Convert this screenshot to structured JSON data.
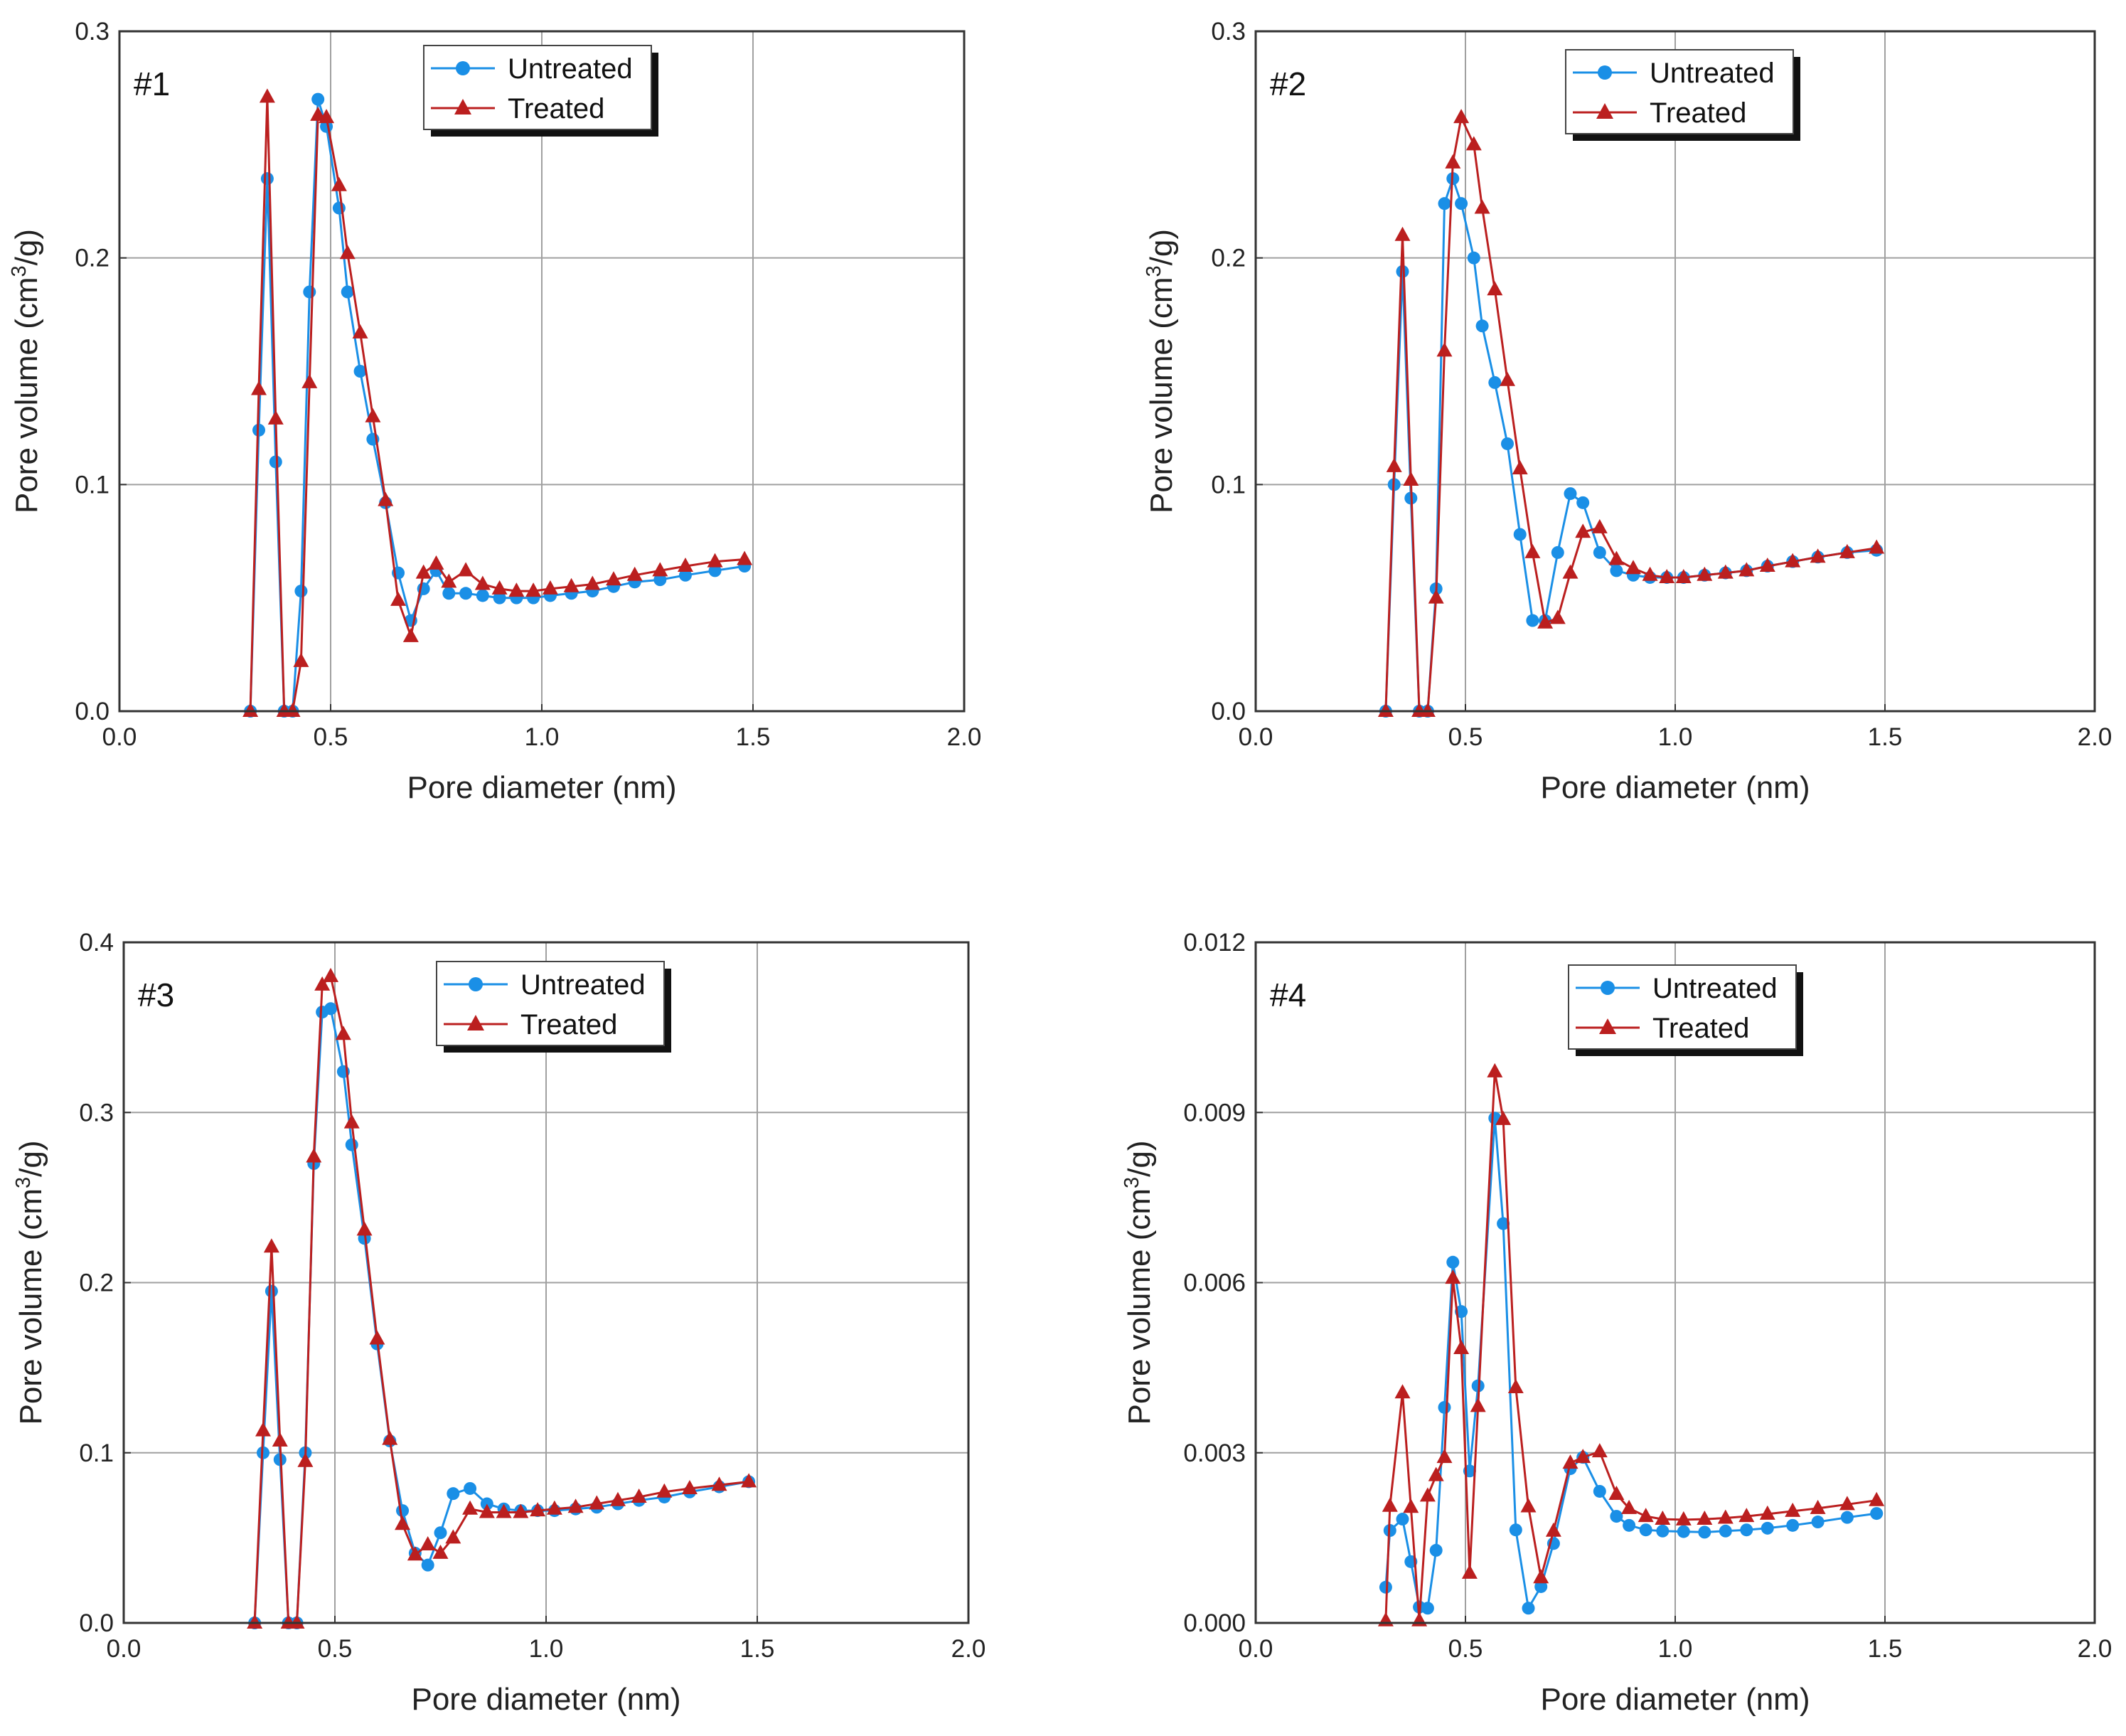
{
  "colors": {
    "untreated": "#1a8fe6",
    "treated": "#bb1f1f"
  },
  "chart_data": [
    {
      "type": "line",
      "panel_label": "#1",
      "xlabel": "Pore diameter (nm)",
      "ylabel_main": "Pore volume (cm",
      "ylabel_sup": "3",
      "ylabel_end": "/g)",
      "xlim": [
        0,
        2.0
      ],
      "ylim": [
        0,
        0.3
      ],
      "xticks": [
        0,
        0.5,
        1.0,
        1.5,
        2.0
      ],
      "xtick_labels": [
        "0.0",
        "0.5",
        "1.0",
        "1.5",
        "2.0"
      ],
      "yticks": [
        0,
        0.1,
        0.2,
        0.3
      ],
      "ytick_labels": [
        "0.0",
        "0.1",
        "0.2",
        "0.3"
      ],
      "grid": true,
      "legend": "top-center",
      "series": [
        {
          "name": "Untreated",
          "marker": "circle",
          "x": [
            0.31,
            0.33,
            0.35,
            0.37,
            0.39,
            0.41,
            0.43,
            0.45,
            0.47,
            0.49,
            0.52,
            0.54,
            0.57,
            0.6,
            0.63,
            0.66,
            0.69,
            0.72,
            0.75,
            0.78,
            0.82,
            0.86,
            0.9,
            0.94,
            0.98,
            1.02,
            1.07,
            1.12,
            1.17,
            1.22,
            1.28,
            1.34,
            1.41,
            1.48
          ],
          "y": [
            0.0,
            0.124,
            0.235,
            0.11,
            0.0,
            0.0,
            0.053,
            0.185,
            0.27,
            0.258,
            0.222,
            0.185,
            0.15,
            0.12,
            0.092,
            0.061,
            0.04,
            0.054,
            0.062,
            0.052,
            0.052,
            0.051,
            0.05,
            0.05,
            0.05,
            0.051,
            0.052,
            0.053,
            0.055,
            0.057,
            0.058,
            0.06,
            0.062,
            0.064
          ]
        },
        {
          "name": "Treated",
          "marker": "triangle",
          "x": [
            0.31,
            0.33,
            0.35,
            0.37,
            0.39,
            0.41,
            0.43,
            0.45,
            0.47,
            0.49,
            0.52,
            0.54,
            0.57,
            0.6,
            0.63,
            0.66,
            0.69,
            0.72,
            0.75,
            0.78,
            0.82,
            0.86,
            0.9,
            0.94,
            0.98,
            1.02,
            1.07,
            1.12,
            1.17,
            1.22,
            1.28,
            1.34,
            1.41,
            1.48
          ],
          "y": [
            0.0,
            0.142,
            0.271,
            0.129,
            0.0,
            0.0,
            0.022,
            0.145,
            0.263,
            0.262,
            0.232,
            0.202,
            0.167,
            0.13,
            0.093,
            0.049,
            0.033,
            0.061,
            0.065,
            0.057,
            0.062,
            0.056,
            0.054,
            0.053,
            0.053,
            0.054,
            0.055,
            0.056,
            0.058,
            0.06,
            0.062,
            0.064,
            0.066,
            0.067
          ]
        }
      ]
    },
    {
      "type": "line",
      "panel_label": "#2",
      "xlabel": "Pore diameter (nm)",
      "ylabel_main": "Pore volume (cm",
      "ylabel_sup": "3",
      "ylabel_end": "/g)",
      "xlim": [
        0,
        2.0
      ],
      "ylim": [
        0,
        0.3
      ],
      "xticks": [
        0,
        0.5,
        1.0,
        1.5,
        2.0
      ],
      "xtick_labels": [
        "0.0",
        "0.5",
        "1.0",
        "1.5",
        "2.0"
      ],
      "yticks": [
        0,
        0.1,
        0.2,
        0.3
      ],
      "ytick_labels": [
        "0.0",
        "0.1",
        "0.2",
        "0.3"
      ],
      "grid": true,
      "legend": "top-right",
      "series": [
        {
          "name": "Untreated",
          "marker": "circle",
          "x": [
            0.31,
            0.33,
            0.35,
            0.37,
            0.39,
            0.41,
            0.43,
            0.45,
            0.47,
            0.49,
            0.52,
            0.54,
            0.57,
            0.6,
            0.63,
            0.66,
            0.69,
            0.72,
            0.75,
            0.78,
            0.82,
            0.86,
            0.9,
            0.94,
            0.98,
            1.02,
            1.07,
            1.12,
            1.17,
            1.22,
            1.28,
            1.34,
            1.41,
            1.48
          ],
          "y": [
            0.0,
            0.1,
            0.194,
            0.094,
            0.0,
            0.0,
            0.054,
            0.224,
            0.235,
            0.224,
            0.2,
            0.17,
            0.145,
            0.118,
            0.078,
            0.04,
            0.04,
            0.07,
            0.096,
            0.092,
            0.07,
            0.062,
            0.06,
            0.059,
            0.059,
            0.059,
            0.06,
            0.061,
            0.062,
            0.064,
            0.066,
            0.068,
            0.07,
            0.071
          ]
        },
        {
          "name": "Treated",
          "marker": "triangle",
          "x": [
            0.31,
            0.33,
            0.35,
            0.37,
            0.39,
            0.41,
            0.43,
            0.45,
            0.47,
            0.49,
            0.52,
            0.54,
            0.57,
            0.6,
            0.63,
            0.66,
            0.69,
            0.72,
            0.75,
            0.78,
            0.82,
            0.86,
            0.9,
            0.94,
            0.98,
            1.02,
            1.07,
            1.12,
            1.17,
            1.22,
            1.28,
            1.34,
            1.41,
            1.48
          ],
          "y": [
            0.0,
            0.108,
            0.21,
            0.102,
            0.0,
            0.0,
            0.05,
            0.159,
            0.242,
            0.262,
            0.25,
            0.222,
            0.186,
            0.146,
            0.107,
            0.07,
            0.039,
            0.041,
            0.061,
            0.079,
            0.081,
            0.067,
            0.063,
            0.06,
            0.059,
            0.059,
            0.06,
            0.061,
            0.062,
            0.064,
            0.066,
            0.068,
            0.07,
            0.072
          ]
        }
      ]
    },
    {
      "type": "line",
      "panel_label": "#3",
      "xlabel": "Pore diameter (nm)",
      "ylabel_main": "Pore volume (cm",
      "ylabel_sup": "3",
      "ylabel_end": "/g)",
      "xlim": [
        0,
        2.0
      ],
      "ylim": [
        0,
        0.4
      ],
      "xticks": [
        0,
        0.5,
        1.0,
        1.5,
        2.0
      ],
      "xtick_labels": [
        "0.0",
        "0.5",
        "1.0",
        "1.5",
        "2.0"
      ],
      "yticks": [
        0,
        0.1,
        0.2,
        0.3,
        0.4
      ],
      "ytick_labels": [
        "0.0",
        "0.1",
        "0.2",
        "0.3",
        "0.4"
      ],
      "grid": true,
      "legend": "top-center",
      "series": [
        {
          "name": "Untreated",
          "marker": "circle",
          "x": [
            0.31,
            0.33,
            0.35,
            0.37,
            0.39,
            0.41,
            0.43,
            0.45,
            0.47,
            0.49,
            0.52,
            0.54,
            0.57,
            0.6,
            0.63,
            0.66,
            0.69,
            0.72,
            0.75,
            0.78,
            0.82,
            0.86,
            0.9,
            0.94,
            0.98,
            1.02,
            1.07,
            1.12,
            1.17,
            1.22,
            1.28,
            1.34,
            1.41,
            1.48
          ],
          "y": [
            0.0,
            0.1,
            0.195,
            0.096,
            0.0,
            0.0,
            0.1,
            0.27,
            0.359,
            0.361,
            0.324,
            0.281,
            0.226,
            0.164,
            0.107,
            0.066,
            0.041,
            0.034,
            0.053,
            0.076,
            0.079,
            0.07,
            0.067,
            0.066,
            0.066,
            0.066,
            0.067,
            0.068,
            0.07,
            0.072,
            0.074,
            0.077,
            0.08,
            0.083
          ]
        },
        {
          "name": "Treated",
          "marker": "triangle",
          "x": [
            0.31,
            0.33,
            0.35,
            0.37,
            0.39,
            0.41,
            0.43,
            0.45,
            0.47,
            0.49,
            0.52,
            0.54,
            0.57,
            0.6,
            0.63,
            0.66,
            0.69,
            0.72,
            0.75,
            0.78,
            0.82,
            0.86,
            0.9,
            0.94,
            0.98,
            1.02,
            1.07,
            1.12,
            1.17,
            1.22,
            1.28,
            1.34,
            1.41,
            1.48
          ],
          "y": [
            0.0,
            0.113,
            0.221,
            0.107,
            0.0,
            0.0,
            0.095,
            0.274,
            0.375,
            0.38,
            0.346,
            0.294,
            0.231,
            0.167,
            0.108,
            0.058,
            0.04,
            0.046,
            0.041,
            0.05,
            0.067,
            0.065,
            0.065,
            0.065,
            0.066,
            0.067,
            0.068,
            0.07,
            0.072,
            0.074,
            0.077,
            0.079,
            0.081,
            0.083
          ]
        }
      ]
    },
    {
      "type": "line",
      "panel_label": "#4",
      "xlabel": "Pore diameter (nm)",
      "ylabel_main": "Pore volume (cm",
      "ylabel_sup": "3",
      "ylabel_end": "/g)",
      "xlim": [
        0,
        2.0
      ],
      "ylim": [
        0,
        0.012
      ],
      "xticks": [
        0,
        0.5,
        1.0,
        1.5,
        2.0
      ],
      "xtick_labels": [
        "0.0",
        "0.5",
        "1.0",
        "1.5",
        "2.0"
      ],
      "yticks": [
        0,
        0.003,
        0.006,
        0.009,
        0.012
      ],
      "ytick_labels": [
        "0.000",
        "0.003",
        "0.006",
        "0.009",
        "0.012"
      ],
      "grid": true,
      "legend": "top-right",
      "series": [
        {
          "name": "Untreated",
          "marker": "circle",
          "x": [
            0.31,
            0.32,
            0.35,
            0.37,
            0.39,
            0.41,
            0.43,
            0.45,
            0.47,
            0.49,
            0.51,
            0.53,
            0.57,
            0.59,
            0.62,
            0.65,
            0.68,
            0.71,
            0.75,
            0.78,
            0.82,
            0.86,
            0.89,
            0.93,
            0.97,
            1.02,
            1.07,
            1.12,
            1.17,
            1.22,
            1.28,
            1.34,
            1.41,
            1.48
          ],
          "y": [
            0.00063,
            0.00163,
            0.00183,
            0.00108,
            0.00028,
            0.00026,
            0.00128,
            0.0038,
            0.00636,
            0.00549,
            0.00268,
            0.00418,
            0.0089,
            0.00704,
            0.00164,
            0.00026,
            0.00064,
            0.0014,
            0.00272,
            0.00292,
            0.00232,
            0.00188,
            0.00172,
            0.00164,
            0.00162,
            0.00161,
            0.0016,
            0.00162,
            0.00164,
            0.00167,
            0.00172,
            0.00178,
            0.00186,
            0.00193
          ]
        },
        {
          "name": "Treated",
          "marker": "triangle",
          "x": [
            0.31,
            0.32,
            0.35,
            0.37,
            0.39,
            0.41,
            0.43,
            0.45,
            0.47,
            0.49,
            0.51,
            0.53,
            0.57,
            0.59,
            0.62,
            0.65,
            0.68,
            0.71,
            0.75,
            0.78,
            0.82,
            0.86,
            0.89,
            0.93,
            0.97,
            1.02,
            1.07,
            1.12,
            1.17,
            1.22,
            1.28,
            1.34,
            1.41,
            1.48
          ],
          "y": [
            4e-05,
            0.00206,
            0.00406,
            0.00204,
            4e-05,
            0.00224,
            0.0026,
            0.00292,
            0.00608,
            0.00484,
            0.00088,
            0.00382,
            0.00972,
            0.00888,
            0.00415,
            0.00205,
            0.0008,
            0.00162,
            0.00282,
            0.00292,
            0.00302,
            0.00227,
            0.00202,
            0.00188,
            0.00183,
            0.00182,
            0.00183,
            0.00185,
            0.00188,
            0.00192,
            0.00197,
            0.00202,
            0.00209,
            0.00216
          ]
        }
      ]
    }
  ]
}
